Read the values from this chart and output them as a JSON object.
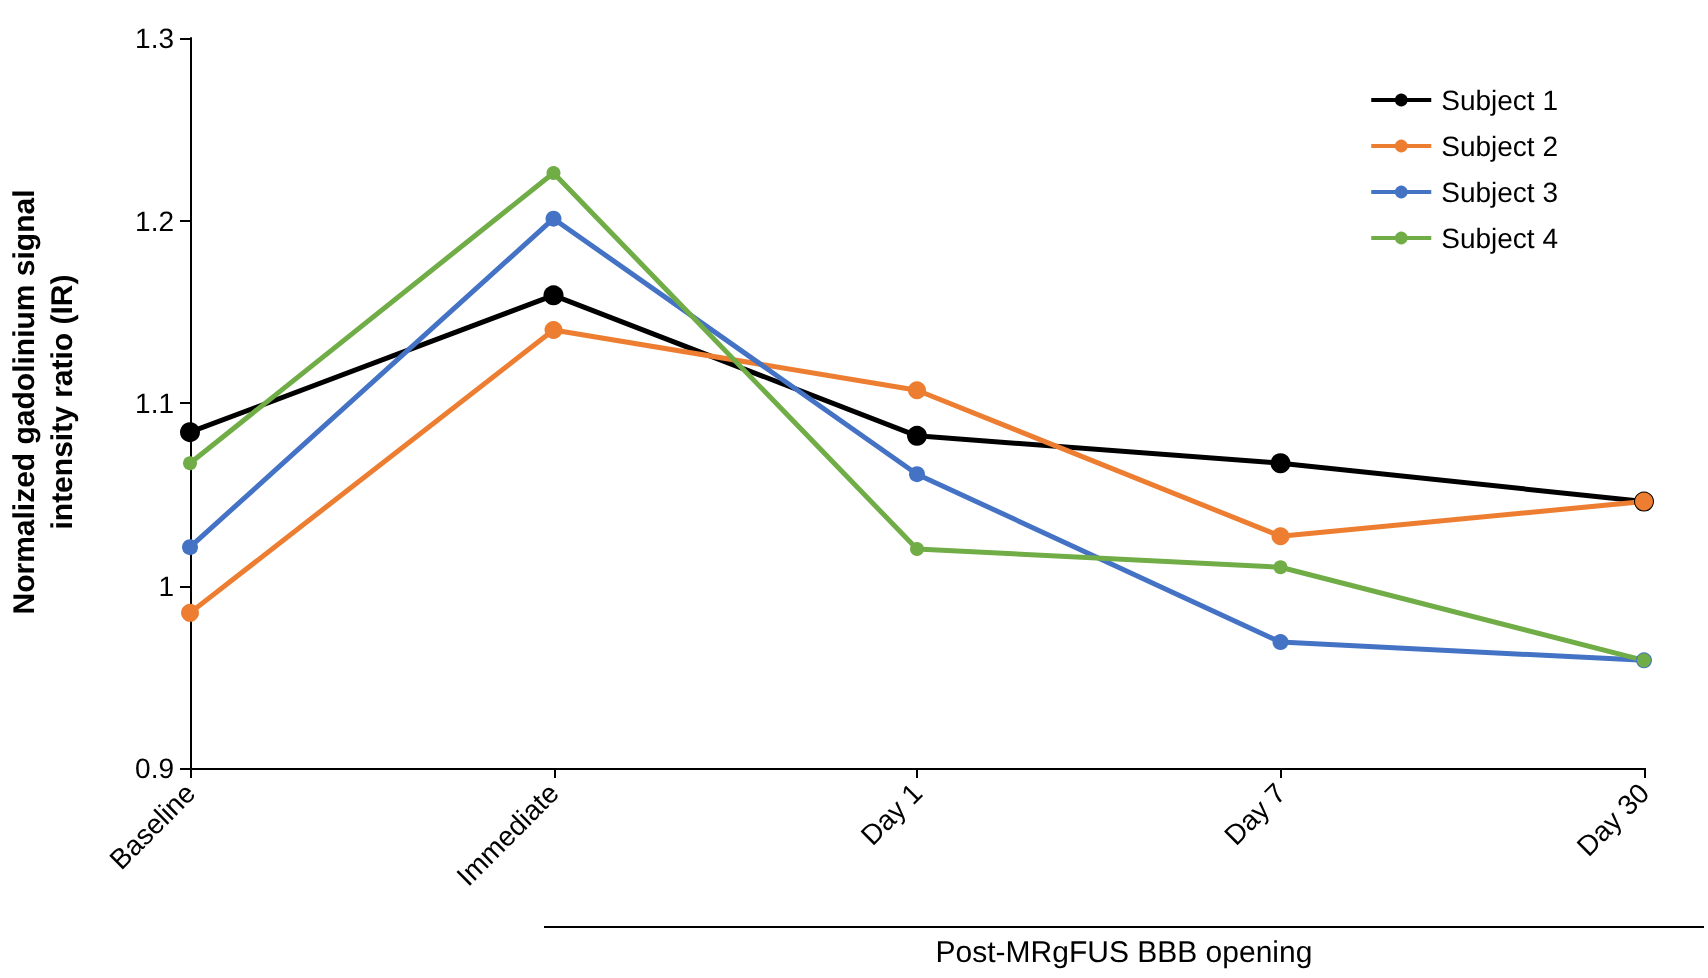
{
  "chart_data": {
    "type": "line",
    "ylabel": "Normalized gadolinium signal intensity ratio (IR)",
    "categories": [
      "Baseline",
      "Immediate",
      "Day 1",
      "Day 7",
      "Day 30"
    ],
    "series": [
      {
        "name": "Subject 1",
        "color": "#000000",
        "values": [
          1.084,
          1.159,
          1.082,
          1.067,
          1.046
        ]
      },
      {
        "name": "Subject 2",
        "color": "#ed7d31",
        "values": [
          0.985,
          1.14,
          1.107,
          1.027,
          1.046
        ]
      },
      {
        "name": "Subject 3",
        "color": "#4472c4",
        "values": [
          1.021,
          1.201,
          1.061,
          0.969,
          0.959
        ]
      },
      {
        "name": "Subject 4",
        "color": "#70ad47",
        "values": [
          1.067,
          1.226,
          1.02,
          1.01,
          0.959
        ]
      }
    ],
    "ylim": [
      0.9,
      1.3
    ],
    "yticks": [
      0.9,
      1,
      1.1,
      1.2,
      1.3
    ],
    "grid": false,
    "legend": "top right",
    "marker": "circle",
    "line_style": "solid",
    "annotations": [
      "Post-MRgFUS BBB opening"
    ]
  }
}
